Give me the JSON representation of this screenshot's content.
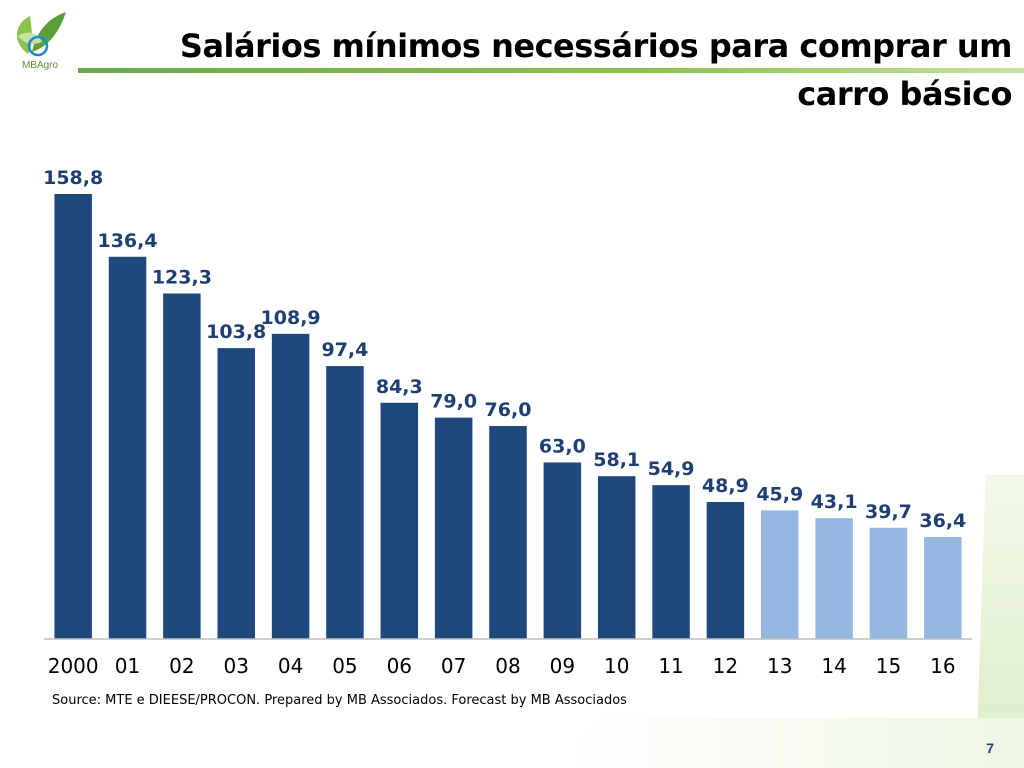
{
  "header": {
    "title": "Salários mínimos necessários para comprar um carro básico",
    "logo_text": "MBAgro"
  },
  "colors": {
    "actual": "#1f497d",
    "forecast": "#95b8e3",
    "label": "#1f3f73",
    "accent": "#6aa84f"
  },
  "chart_data": {
    "type": "bar",
    "title": "Salários mínimos necessários para comprar um carro básico",
    "categories": [
      "2000",
      "01",
      "02",
      "03",
      "04",
      "05",
      "06",
      "07",
      "08",
      "09",
      "10",
      "11",
      "12",
      "13",
      "14",
      "15",
      "16"
    ],
    "values": [
      158.8,
      136.4,
      123.3,
      103.8,
      108.9,
      97.4,
      84.3,
      79.0,
      76.0,
      63.0,
      58.1,
      54.9,
      48.9,
      45.9,
      43.1,
      39.7,
      36.4
    ],
    "value_labels": [
      "158,8",
      "136,4",
      "123,3",
      "103,8",
      "108,9",
      "97,4",
      "84,3",
      "79,0",
      "76,0",
      "63,0",
      "58,1",
      "54,9",
      "48,9",
      "45,9",
      "43,1",
      "39,7",
      "36,4"
    ],
    "forecast_from_index": 13,
    "xlabel": "",
    "ylabel": "",
    "ylim": [
      0,
      160
    ],
    "grid": false,
    "legend": "none"
  },
  "footer": {
    "source": "Source: MTE e DIEESE/PROCON. Prepared by MB Associados. Forecast by MB Associados",
    "page_number": "7"
  }
}
